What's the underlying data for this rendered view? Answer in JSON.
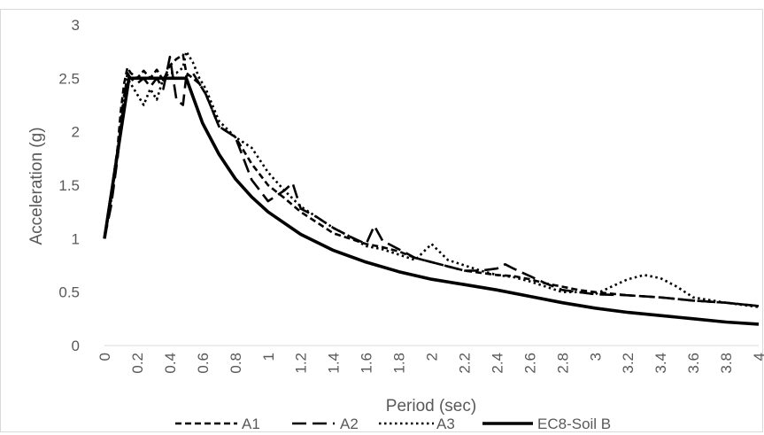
{
  "chart_data": {
    "type": "line",
    "title": "",
    "xlabel": "Period (sec)",
    "ylabel": "Acceleration (g)",
    "xlim": [
      0,
      4
    ],
    "ylim": [
      0,
      3
    ],
    "x_ticks": [
      "0",
      "0.2",
      "0.4",
      "0.6",
      "0.8",
      "1",
      "1.2",
      "1.4",
      "1.6",
      "1.8",
      "2",
      "2.2",
      "2.4",
      "2.6",
      "2.8",
      "3",
      "3.2",
      "3.4",
      "3.6",
      "3.8",
      "4"
    ],
    "y_ticks": [
      "0",
      "0.5",
      "1",
      "1.5",
      "2",
      "2.5",
      "3"
    ],
    "grid": false,
    "legend_position": "bottom",
    "series": [
      {
        "name": "A1",
        "style": "short-dash",
        "color": "#000000",
        "x": [
          0,
          0.04,
          0.08,
          0.1,
          0.12,
          0.14,
          0.16,
          0.2,
          0.24,
          0.28,
          0.32,
          0.36,
          0.4,
          0.44,
          0.48,
          0.5,
          0.54,
          0.58,
          0.62,
          0.66,
          0.7,
          0.8,
          0.9,
          1.0,
          1.1,
          1.2,
          1.3,
          1.4,
          1.5,
          1.6,
          1.7,
          1.8,
          1.9,
          2.0,
          2.1,
          2.2,
          2.3,
          2.4,
          2.5,
          2.6,
          2.7,
          2.8,
          2.9,
          3.0,
          3.2,
          3.4,
          3.6,
          3.8,
          4.0
        ],
        "values": [
          1.0,
          1.4,
          1.85,
          2.2,
          2.45,
          2.6,
          2.55,
          2.5,
          2.57,
          2.5,
          2.58,
          2.48,
          2.62,
          2.68,
          2.72,
          2.55,
          2.5,
          2.45,
          2.35,
          2.2,
          2.05,
          1.95,
          1.7,
          1.5,
          1.38,
          1.25,
          1.15,
          1.05,
          1.0,
          0.95,
          0.92,
          0.88,
          0.82,
          0.78,
          0.74,
          0.7,
          0.68,
          0.66,
          0.65,
          0.62,
          0.58,
          0.55,
          0.52,
          0.5,
          0.47,
          0.45,
          0.42,
          0.4,
          0.37
        ]
      },
      {
        "name": "A2",
        "style": "long-dash",
        "color": "#000000",
        "x": [
          0,
          0.04,
          0.08,
          0.1,
          0.12,
          0.14,
          0.16,
          0.2,
          0.24,
          0.28,
          0.32,
          0.36,
          0.4,
          0.44,
          0.48,
          0.5,
          0.54,
          0.58,
          0.62,
          0.66,
          0.7,
          0.8,
          0.9,
          1.0,
          1.1,
          1.15,
          1.2,
          1.3,
          1.4,
          1.5,
          1.6,
          1.65,
          1.7,
          1.8,
          1.9,
          2.0,
          2.1,
          2.2,
          2.3,
          2.4,
          2.45,
          2.5,
          2.6,
          2.7,
          2.8,
          2.9,
          3.0,
          3.2,
          3.4,
          3.6,
          3.8,
          4.0
        ],
        "values": [
          1.0,
          1.3,
          1.75,
          2.05,
          2.3,
          2.55,
          2.5,
          2.45,
          2.5,
          2.42,
          2.5,
          2.4,
          2.7,
          2.3,
          2.25,
          2.52,
          2.55,
          2.45,
          2.35,
          2.2,
          2.05,
          1.95,
          1.55,
          1.35,
          1.45,
          1.52,
          1.28,
          1.2,
          1.1,
          1.02,
          0.95,
          1.12,
          0.98,
          0.9,
          0.82,
          0.78,
          0.74,
          0.7,
          0.7,
          0.72,
          0.76,
          0.72,
          0.65,
          0.58,
          0.52,
          0.5,
          0.48,
          0.47,
          0.45,
          0.42,
          0.4,
          0.37
        ]
      },
      {
        "name": "A3",
        "style": "dotted",
        "color": "#000000",
        "x": [
          0,
          0.04,
          0.08,
          0.1,
          0.12,
          0.14,
          0.16,
          0.2,
          0.24,
          0.28,
          0.32,
          0.36,
          0.4,
          0.44,
          0.48,
          0.5,
          0.54,
          0.58,
          0.62,
          0.66,
          0.7,
          0.8,
          0.9,
          1.0,
          1.1,
          1.2,
          1.3,
          1.4,
          1.5,
          1.6,
          1.7,
          1.8,
          1.9,
          2.0,
          2.1,
          2.2,
          2.3,
          2.4,
          2.5,
          2.6,
          2.7,
          2.8,
          2.9,
          3.0,
          3.1,
          3.2,
          3.3,
          3.4,
          3.5,
          3.6,
          3.8,
          4.0
        ],
        "values": [
          1.0,
          1.35,
          1.8,
          2.1,
          2.35,
          2.5,
          2.45,
          2.35,
          2.25,
          2.4,
          2.3,
          2.5,
          2.55,
          2.55,
          2.6,
          2.75,
          2.65,
          2.5,
          2.4,
          2.25,
          2.1,
          1.95,
          1.85,
          1.62,
          1.45,
          1.3,
          1.2,
          1.1,
          1.02,
          0.93,
          0.9,
          0.85,
          0.8,
          0.95,
          0.8,
          0.75,
          0.7,
          0.66,
          0.64,
          0.6,
          0.55,
          0.5,
          0.5,
          0.48,
          0.55,
          0.62,
          0.66,
          0.63,
          0.55,
          0.45,
          0.4,
          0.36
        ]
      },
      {
        "name": "EC8-Soil B",
        "style": "solid",
        "color": "#000000",
        "x": [
          0,
          0.15,
          0.5,
          0.6,
          0.7,
          0.8,
          0.9,
          1.0,
          1.2,
          1.4,
          1.6,
          1.8,
          2.0,
          2.2,
          2.4,
          2.6,
          2.8,
          3.0,
          3.2,
          3.4,
          3.6,
          3.8,
          4.0
        ],
        "values": [
          1.0,
          2.5,
          2.5,
          2.08,
          1.79,
          1.56,
          1.39,
          1.25,
          1.04,
          0.89,
          0.78,
          0.69,
          0.62,
          0.57,
          0.52,
          0.46,
          0.4,
          0.35,
          0.31,
          0.28,
          0.25,
          0.22,
          0.2
        ]
      }
    ]
  }
}
